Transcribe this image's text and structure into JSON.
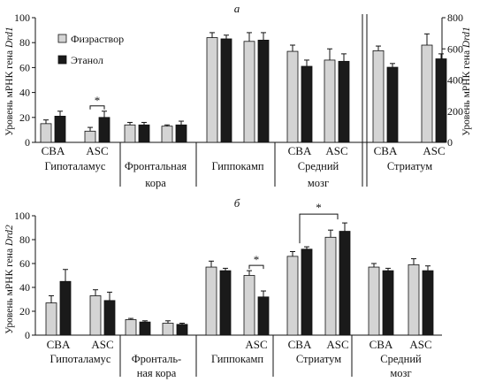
{
  "legend": {
    "items": [
      {
        "label": "Физраствор",
        "color": "#d4d4d4"
      },
      {
        "label": "Этанол",
        "color": "#1a1a1a"
      }
    ]
  },
  "panels": {
    "a": {
      "label": "а",
      "ylabel_left": "Уровень мРНК гена ",
      "ylabel_right": "Уровень мРНК гена ",
      "gene": "Drd1"
    },
    "b": {
      "label": "б",
      "ylabel_left": "Уровень мРНК гена ",
      "gene": "Drd2"
    }
  },
  "chart_data": [
    {
      "type": "bar",
      "panel": "а",
      "ylabel": "Уровень мРНК гена Drd1",
      "ylim": [
        0,
        100
      ],
      "yticks": [
        0,
        20,
        40,
        60,
        80,
        100
      ],
      "ylim_right": [
        0,
        800
      ],
      "yticks_right": [
        0,
        200,
        400,
        600,
        800
      ],
      "series": [
        {
          "name": "Физраствор"
        },
        {
          "name": "Этанол"
        }
      ],
      "groups": [
        {
          "label": [
            "Гипоталамус"
          ],
          "axis": "left",
          "bars": [
            {
              "category": "CBA",
              "values": [
                15,
                21
              ],
              "errors": [
                3,
                4
              ]
            },
            {
              "category": "ASC",
              "values": [
                9,
                20
              ],
              "errors": [
                3,
                5
              ]
            }
          ],
          "significance": {
            "category": "ASC",
            "mark": "*"
          }
        },
        {
          "label": [
            "Фронтальная",
            "кора"
          ],
          "axis": "left",
          "bars": [
            {
              "category": "",
              "values": [
                14,
                14
              ],
              "errors": [
                2,
                2
              ]
            },
            {
              "category": "",
              "values": [
                13,
                14
              ],
              "errors": [
                1,
                3
              ]
            }
          ]
        },
        {
          "label": [
            "Гиппокамп"
          ],
          "axis": "left",
          "bars": [
            {
              "category": "",
              "values": [
                84,
                83
              ],
              "errors": [
                4,
                3
              ]
            },
            {
              "category": "",
              "values": [
                81,
                82
              ],
              "errors": [
                7,
                6
              ]
            }
          ]
        },
        {
          "label": [
            "Средний",
            "мозг"
          ],
          "axis": "left",
          "bars": [
            {
              "category": "CBA",
              "values": [
                73,
                61
              ],
              "errors": [
                5,
                5
              ]
            },
            {
              "category": "ASC",
              "values": [
                66,
                65
              ],
              "errors": [
                9,
                6
              ]
            }
          ]
        },
        {
          "label": [
            "Стриатум"
          ],
          "axis": "right",
          "bars": [
            {
              "category": "CBA",
              "values": [
                588,
                482
              ],
              "errors": [
                30,
                24
              ]
            },
            {
              "category": "ASC",
              "values": [
                624,
                536
              ],
              "errors": [
                72,
                32
              ]
            }
          ]
        }
      ]
    },
    {
      "type": "bar",
      "panel": "б",
      "ylabel": "Уровень мРНК гена Drd2",
      "ylim": [
        0,
        100
      ],
      "yticks": [
        0,
        20,
        40,
        60,
        80,
        100
      ],
      "series": [
        {
          "name": "Физраствор"
        },
        {
          "name": "Этанол"
        }
      ],
      "groups": [
        {
          "label": [
            "Гипоталамус"
          ],
          "bars": [
            {
              "category": "CBA",
              "values": [
                27,
                45
              ],
              "errors": [
                6,
                10
              ]
            },
            {
              "category": "ASC",
              "values": [
                33,
                29
              ],
              "errors": [
                5,
                7
              ]
            }
          ]
        },
        {
          "label": [
            "Фронталь-",
            "ная кора"
          ],
          "bars": [
            {
              "category": "",
              "values": [
                13,
                11
              ],
              "errors": [
                1,
                1
              ]
            },
            {
              "category": "",
              "values": [
                10,
                9
              ],
              "errors": [
                2,
                1
              ]
            }
          ]
        },
        {
          "label": [
            "Гиппокамп"
          ],
          "bars": [
            {
              "category": "",
              "values": [
                57,
                54
              ],
              "errors": [
                5,
                2
              ]
            },
            {
              "category": "ASC",
              "values": [
                50,
                32
              ],
              "errors": [
                4,
                5
              ]
            }
          ],
          "significance": {
            "category": "ASC",
            "mark": "*"
          }
        },
        {
          "label": [
            "Стриатум"
          ],
          "bars": [
            {
              "category": "CBA",
              "values": [
                66,
                72
              ],
              "errors": [
                4,
                2
              ]
            },
            {
              "category": "ASC",
              "values": [
                82,
                87
              ],
              "errors": [
                6,
                7
              ]
            }
          ],
          "significance_between": {
            "categories": [
              "CBA",
              "ASC"
            ],
            "mark": "*"
          }
        },
        {
          "label": [
            "Средний",
            "мозг"
          ],
          "bars": [
            {
              "category": "CBA",
              "values": [
                57,
                54
              ],
              "errors": [
                3,
                2
              ]
            },
            {
              "category": "ASC",
              "values": [
                59,
                54
              ],
              "errors": [
                5,
                4
              ]
            }
          ]
        }
      ]
    }
  ]
}
